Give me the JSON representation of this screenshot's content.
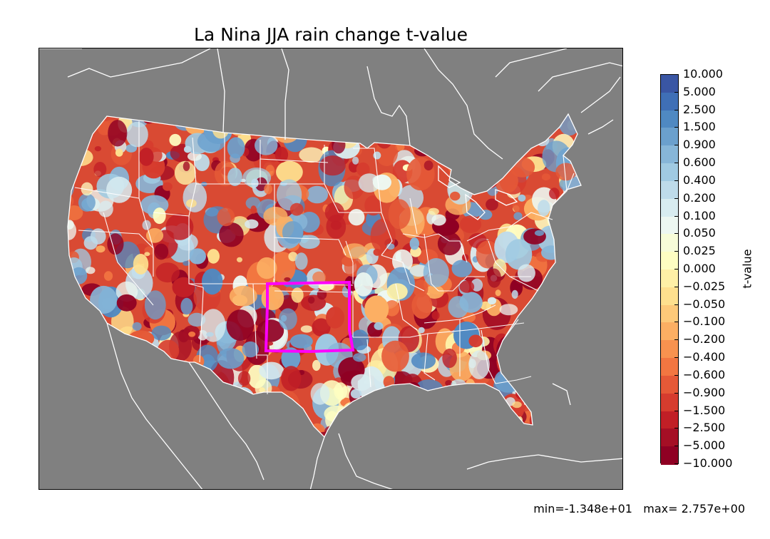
{
  "title": "La Nina JJA rain change t-value",
  "colorbar": {
    "label": "t-value",
    "ticks": [
      "10.000",
      "5.000",
      "2.500",
      "1.500",
      "0.900",
      "0.600",
      "0.400",
      "0.200",
      "0.100",
      "0.050",
      "0.025",
      "0.000",
      "−0.025",
      "−0.050",
      "−0.100",
      "−0.200",
      "−0.400",
      "−0.600",
      "−0.900",
      "−1.500",
      "−2.500",
      "−5.000",
      "−10.000"
    ],
    "colors": [
      "#3a56a4",
      "#3f6fb6",
      "#4f89c2",
      "#6ba0cd",
      "#87b6d8",
      "#a0cae2",
      "#bedbea",
      "#d8ecf0",
      "#edf7f1",
      "#f7fcd8",
      "#fefec2",
      "#fef0a6",
      "#fee08e",
      "#fdc979",
      "#fcaf63",
      "#f8924f",
      "#f27641",
      "#e55937",
      "#d63c2e",
      "#c11f26",
      "#a50f25",
      "#8f0023"
    ]
  },
  "stats": {
    "min": "min=-1.348e+01",
    "max": "max= 2.757e+00"
  },
  "highlight_color": "#ff00ff"
}
